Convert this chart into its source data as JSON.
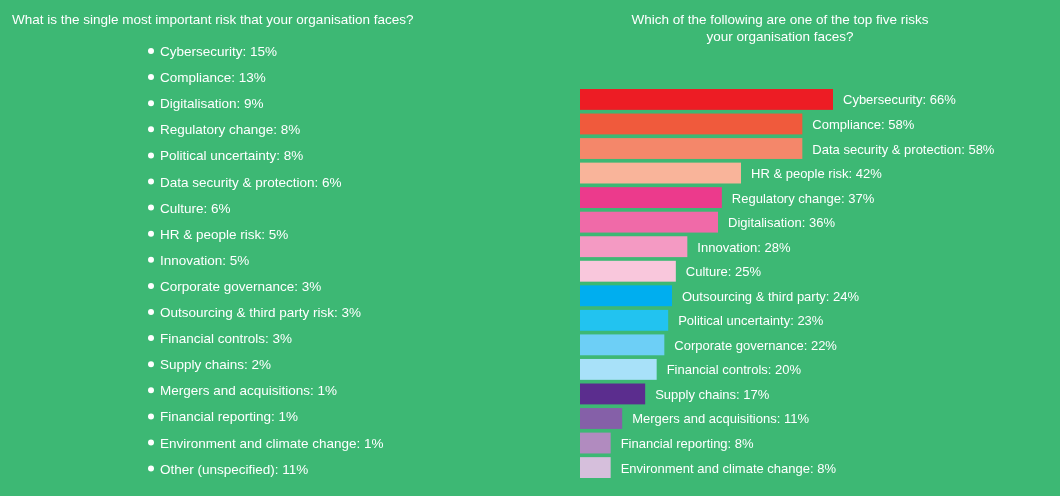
{
  "chart_data": [
    {
      "type": "other",
      "title": "What is the single most important risk that your organisation faces?",
      "annotations": [
        "Cybersecurity: 15%",
        "Compliance: 13%",
        "Digitalisation: 9%",
        "Regulatory change: 8%",
        "Political uncertainty: 8%",
        "Data security & protection: 6%",
        "Culture: 6%",
        "HR & people risk: 5%",
        "Innovation: 5%",
        "Corporate governance: 3%",
        "Outsourcing & third party risk: 3%",
        "Financial controls: 3%",
        "Supply chains: 2%",
        "Mergers and acquisitions: 1%",
        "Financial reporting: 1%",
        "Environment and climate change: 1%",
        "Other (unspecified): 11%"
      ]
    },
    {
      "type": "bar",
      "orientation": "horizontal",
      "title": "Which of the following are one of the top five risks\nyour organisation faces?",
      "categories": [
        null,
        null,
        null,
        null,
        null,
        null,
        null,
        null,
        null,
        null,
        null,
        null,
        null,
        null,
        null,
        null
      ],
      "values": [
        66,
        58,
        58,
        42,
        37,
        36,
        28,
        25,
        24,
        23,
        22,
        20,
        17,
        11,
        8,
        8
      ],
      "value_labels": [
        "Cybersecurity: 66%",
        "Compliance: 58%",
        "Data security & protection: 58%",
        "HR & people risk: 42%",
        "Regulatory change: 37%",
        "Digitalisation: 36%",
        "Innovation: 28%",
        "Culture: 25%",
        "Outsourcing & third party: 24%",
        "Political uncertainty: 23%",
        "Corporate governance: 22%",
        "Financial controls: 20%",
        "Supply chains: 17%",
        "Mergers and acquisitions: 11%",
        "Financial reporting: 8%",
        "Environment and climate change: 8%"
      ],
      "colors": [
        "#ed1c24",
        "#f05a3c",
        "#f4876a",
        "#f9b49a",
        "#ec3a8c",
        "#f06aa8",
        "#f49ac3",
        "#f9c7dc",
        "#00aeef",
        "#22c3f0",
        "#6dcff6",
        "#a8e1f9",
        "#5b2d8e",
        "#8560a8",
        "#b18bbf",
        "#d6bfdc"
      ]
    }
  ]
}
